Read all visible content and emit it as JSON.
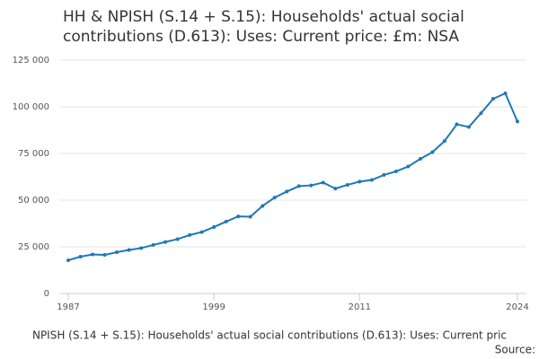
{
  "chart_data": {
    "type": "line",
    "title": [
      "HH & NPISH (S.14 + S.15): Households' actual social",
      "contributions (D.613): Uses: Current price: £m: NSA"
    ],
    "caption": "NPISH (S.14 + S.15): Households' actual social contributions (D.613): Uses: Current pric",
    "source": "Source:",
    "x": [
      1987,
      1988,
      1989,
      1990,
      1991,
      1992,
      1993,
      1994,
      1995,
      1996,
      1997,
      1998,
      1999,
      2000,
      2001,
      2002,
      2003,
      2004,
      2005,
      2006,
      2007,
      2008,
      2009,
      2010,
      2011,
      2012,
      2013,
      2014,
      2015,
      2016,
      2017,
      2018,
      2019,
      2020,
      2021,
      2022,
      2023,
      2024
    ],
    "values": [
      17800,
      19700,
      20900,
      20700,
      22100,
      23300,
      24300,
      26000,
      27600,
      29100,
      31300,
      32900,
      35600,
      38500,
      41300,
      41100,
      46900,
      51400,
      54600,
      57500,
      57900,
      59400,
      56200,
      58200,
      59900,
      60800,
      63500,
      65400,
      68000,
      72100,
      75700,
      81700,
      90600,
      89200,
      96600,
      104300,
      107200,
      92100
    ],
    "color": "#1f78b8",
    "xlim": [
      1987,
      2024
    ],
    "xticks": [
      1987,
      1999,
      2011,
      2024
    ],
    "ylim": [
      0,
      125000
    ],
    "yticks": [
      0,
      {
        "value": 25000,
        "label": "25 000"
      },
      {
        "value": 50000,
        "label": "50 000"
      },
      {
        "value": 75000,
        "label": "75 000"
      },
      {
        "value": 100000,
        "label": "100 000"
      },
      {
        "value": 125000,
        "label": "125 000"
      }
    ],
    "grid": true
  }
}
